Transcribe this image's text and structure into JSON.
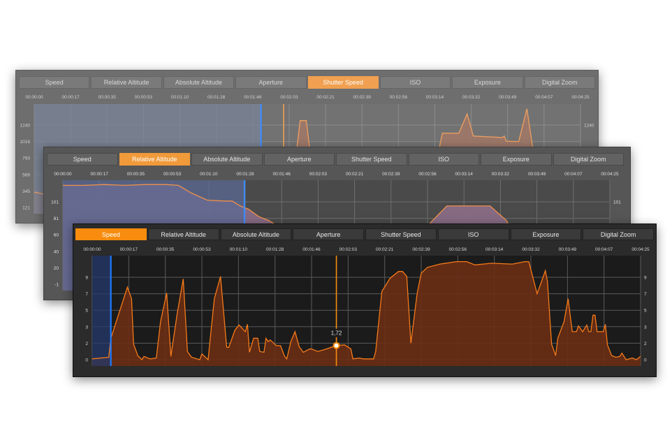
{
  "tabs": [
    "Speed",
    "Relative Altitude",
    "Absolute Altitude",
    "Aperture",
    "Shutter Speed",
    "ISO",
    "Exposure",
    "Digital Zoom"
  ],
  "time_ticks": [
    "00:00:00",
    "00:00:17",
    "00:00:35",
    "00:00:53",
    "00:01:10",
    "00:01:28",
    "00:01:46",
    "00:02:03",
    "00:02:21",
    "00:02:39",
    "00:02:56",
    "00:03:14",
    "00:03:32",
    "00:03:49",
    "00:04:07",
    "00:04:25"
  ],
  "chart_data": [
    {
      "type": "area",
      "active_tab": "Shutter Speed",
      "x_unit": "seconds",
      "x_range": [
        0,
        265
      ],
      "yticks": [
        121,
        345,
        569,
        793,
        1016,
        1240
      ],
      "grid": true,
      "selection_end": 110,
      "cursor": 121,
      "colors": {
        "bg": "#6e6e6e",
        "plot": "#727272",
        "grid": "#8c8c8c",
        "selection": "#7a8499",
        "line": "#f0a060",
        "fill": "#a07868",
        "tab_active": "#f0a050",
        "selection_edge": "#3d8cff",
        "cursor": "#f0a050",
        "label": "#d0d0d0"
      },
      "points": [
        [
          0,
          330
        ],
        [
          5,
          300
        ],
        [
          10,
          200
        ],
        [
          20,
          100
        ],
        [
          60,
          100
        ],
        [
          100,
          100
        ],
        [
          122,
          100
        ],
        [
          126,
          600
        ],
        [
          129,
          1300
        ],
        [
          132,
          1300
        ],
        [
          135,
          600
        ],
        [
          138,
          100
        ],
        [
          190,
          100
        ],
        [
          194,
          600
        ],
        [
          198,
          1130
        ],
        [
          206,
          1130
        ],
        [
          210,
          1390
        ],
        [
          213,
          1090
        ],
        [
          227,
          1070
        ],
        [
          228,
          1090
        ],
        [
          229,
          1020
        ],
        [
          235,
          1016
        ],
        [
          239,
          1460
        ],
        [
          242,
          900
        ],
        [
          244,
          100
        ],
        [
          265,
          100
        ]
      ]
    },
    {
      "type": "area",
      "active_tab": "Relative Altitude",
      "x_unit": "seconds",
      "x_range": [
        0,
        265
      ],
      "yticks": [
        -1,
        20,
        40,
        60,
        81,
        101
      ],
      "grid": true,
      "selection_end": 88,
      "colors": {
        "bg": "#565656",
        "plot": "#4a4a4a",
        "grid": "#6e6e6e",
        "selection": "#5b6a94",
        "line": "#f0904a",
        "fill": "#8c6e88",
        "fill_out": "#9a6a55",
        "tab_active": "#f09a3a",
        "selection_edge": "#3d8cff",
        "label": "#e0e0e0"
      },
      "points": [
        [
          0,
          121
        ],
        [
          10,
          121
        ],
        [
          20,
          122
        ],
        [
          30,
          121
        ],
        [
          40,
          122
        ],
        [
          50,
          122
        ],
        [
          56,
          121
        ],
        [
          62,
          112
        ],
        [
          70,
          103
        ],
        [
          78,
          102
        ],
        [
          82,
          102
        ],
        [
          86,
          96
        ],
        [
          90,
          92
        ],
        [
          95,
          83
        ],
        [
          100,
          78
        ],
        [
          110,
          60
        ],
        [
          120,
          40
        ],
        [
          130,
          20
        ],
        [
          140,
          5
        ],
        [
          150,
          0
        ],
        [
          165,
          0
        ],
        [
          170,
          40
        ],
        [
          178,
          75
        ],
        [
          186,
          96
        ],
        [
          207,
          96
        ],
        [
          215,
          78
        ],
        [
          222,
          40
        ],
        [
          232,
          5
        ],
        [
          240,
          0
        ],
        [
          265,
          0
        ]
      ]
    },
    {
      "type": "area",
      "active_tab": "Speed",
      "x_unit": "seconds",
      "x_range": [
        0,
        265
      ],
      "yticks": [
        0,
        2,
        3,
        5,
        7,
        9
      ],
      "grid": true,
      "selection_end": 9,
      "cursor": 118,
      "cursor_label": "1,72",
      "cursor_value": 1.72,
      "colors": {
        "bg": "#2b2b2b",
        "plot": "#1b1b1b",
        "grid": "#5a5a5a",
        "selection": "#24396c",
        "line": "#f57a1a",
        "fill": "#6a2d14",
        "tab_active": "#f78c0e",
        "selection_edge": "#1e7cff",
        "cursor": "#f78c0e",
        "label": "#d8d8d8"
      },
      "points": [
        [
          0,
          0.1
        ],
        [
          8,
          0.3
        ],
        [
          9,
          2.3
        ],
        [
          17,
          7.8
        ],
        [
          19,
          6.4
        ],
        [
          20,
          1.9
        ],
        [
          22,
          0.5
        ],
        [
          24,
          0
        ],
        [
          25,
          0.4
        ],
        [
          28,
          0.1
        ],
        [
          31,
          0.2
        ],
        [
          33,
          3.6
        ],
        [
          36,
          7.1
        ],
        [
          38,
          0.4
        ],
        [
          41,
          4.5
        ],
        [
          44,
          8.8
        ],
        [
          46,
          1.0
        ],
        [
          48,
          0.3
        ],
        [
          52,
          0
        ],
        [
          53,
          0.7
        ],
        [
          56,
          0
        ],
        [
          59,
          6.4
        ],
        [
          62,
          9.1
        ],
        [
          65,
          1.5
        ],
        [
          66,
          1.5
        ],
        [
          69,
          2.8
        ],
        [
          71,
          3.2
        ],
        [
          74,
          2.7
        ],
        [
          75,
          3.3
        ],
        [
          76,
          0.9
        ],
        [
          78,
          2.3
        ],
        [
          80,
          2.3
        ],
        [
          81,
          1.0
        ],
        [
          83,
          0.9
        ],
        [
          84,
          2.3
        ],
        [
          85,
          2.1
        ],
        [
          86,
          2.2
        ],
        [
          89,
          1.7
        ],
        [
          91,
          1.7
        ],
        [
          93,
          0.4
        ],
        [
          94,
          0.1
        ],
        [
          96,
          2.1
        ],
        [
          98,
          2.7
        ],
        [
          100,
          1.6
        ],
        [
          102,
          0.9
        ],
        [
          105,
          1.3
        ],
        [
          106,
          1.3
        ],
        [
          109,
          1.0
        ],
        [
          112,
          1.2
        ],
        [
          118,
          1.72
        ],
        [
          122,
          1.8
        ],
        [
          125,
          1.3
        ],
        [
          126,
          0.1
        ],
        [
          129,
          0.2
        ],
        [
          131,
          0.1
        ],
        [
          136,
          0.1
        ],
        [
          137,
          1.0
        ],
        [
          140,
          7.3
        ],
        [
          144,
          8.9
        ],
        [
          148,
          9.7
        ],
        [
          150,
          9.7
        ],
        [
          152,
          9.1
        ],
        [
          154,
          2.0
        ],
        [
          157,
          7.0
        ],
        [
          159,
          9.5
        ],
        [
          162,
          10.2
        ],
        [
          168,
          10.6
        ],
        [
          176,
          10.9
        ],
        [
          181,
          10.9
        ],
        [
          185,
          10.5
        ],
        [
          193,
          10.7
        ],
        [
          203,
          10.6
        ],
        [
          209,
          10.9
        ],
        [
          211,
          10.9
        ],
        [
          215,
          7.0
        ],
        [
          219,
          9.8
        ],
        [
          220,
          8.5
        ],
        [
          222,
          1.9
        ],
        [
          224,
          0.5
        ],
        [
          225,
          2.3
        ],
        [
          228,
          3.6
        ],
        [
          230,
          6.4
        ],
        [
          232,
          2.7
        ],
        [
          234,
          2.7
        ],
        [
          235,
          3.1
        ],
        [
          237,
          2.7
        ],
        [
          239,
          3.2
        ],
        [
          240,
          2.7
        ],
        [
          241,
          2.7
        ],
        [
          242,
          4.4
        ],
        [
          243,
          4.4
        ],
        [
          244,
          2.7
        ],
        [
          247,
          2.7
        ],
        [
          248,
          3.3
        ],
        [
          249,
          1.8
        ],
        [
          251,
          0.5
        ],
        [
          253,
          0.3
        ],
        [
          255,
          0.4
        ],
        [
          256,
          0.8
        ],
        [
          258,
          0
        ],
        [
          261,
          0.2
        ],
        [
          263,
          0
        ],
        [
          265,
          0.4
        ]
      ]
    }
  ]
}
